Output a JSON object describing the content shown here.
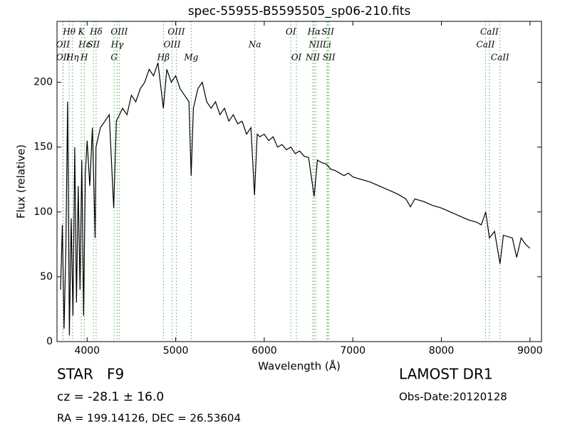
{
  "chart_data": {
    "type": "line",
    "title": "spec-55955-B5595505_sp06-210.fits",
    "x_label": "Wavelength (Å)",
    "y_label": "Flux (relative)",
    "color": "#000000",
    "x": [
      3700,
      3720,
      3740,
      3760,
      3780,
      3800,
      3820,
      3840,
      3860,
      3880,
      3900,
      3920,
      3940,
      3960,
      3980,
      4000,
      4030,
      4060,
      4090,
      4100,
      4150,
      4200,
      4250,
      4300,
      4330,
      4400,
      4450,
      4500,
      4550,
      4600,
      4650,
      4700,
      4750,
      4800,
      4861,
      4900,
      4950,
      5000,
      5050,
      5100,
      5150,
      5175,
      5200,
      5250,
      5300,
      5350,
      5400,
      5450,
      5500,
      5550,
      5600,
      5650,
      5700,
      5750,
      5800,
      5850,
      5890,
      5920,
      5950,
      6000,
      6050,
      6100,
      6150,
      6200,
      6250,
      6300,
      6350,
      6400,
      6450,
      6500,
      6563,
      6600,
      6650,
      6700,
      6750,
      6800,
      6850,
      6900,
      6950,
      7000,
      7100,
      7200,
      7300,
      7400,
      7500,
      7600,
      7650,
      7700,
      7800,
      7900,
      8000,
      8100,
      8200,
      8300,
      8400,
      8450,
      8500,
      8542,
      8600,
      8662,
      8700,
      8800,
      8850,
      8900,
      8950,
      9000
    ],
    "values": [
      40,
      90,
      10,
      70,
      185,
      5,
      95,
      20,
      150,
      30,
      120,
      40,
      140,
      20,
      130,
      155,
      120,
      165,
      80,
      150,
      165,
      170,
      175,
      103,
      170,
      180,
      175,
      190,
      185,
      195,
      200,
      210,
      205,
      215,
      180,
      210,
      200,
      205,
      195,
      190,
      185,
      128,
      180,
      195,
      200,
      185,
      180,
      185,
      175,
      180,
      170,
      175,
      168,
      170,
      160,
      165,
      113,
      160,
      158,
      160,
      155,
      158,
      150,
      152,
      148,
      150,
      145,
      147,
      143,
      142,
      112,
      140,
      138,
      137,
      133,
      132,
      130,
      128,
      130,
      127,
      125,
      123,
      120,
      117,
      114,
      110,
      104,
      110,
      108,
      105,
      103,
      100,
      97,
      94,
      92,
      90,
      100,
      80,
      85,
      60,
      82,
      80,
      65,
      80,
      75,
      72
    ],
    "xlim": [
      3660,
      9130
    ],
    "ylim": [
      0,
      247
    ],
    "xticks": [
      4000,
      5000,
      6000,
      7000,
      8000,
      9000
    ],
    "yticks": [
      0,
      50,
      100,
      150,
      200
    ],
    "line_color": "#55aa55",
    "line_labels": [
      [
        {
          "label": "Hθ",
          "x": 3798
        },
        {
          "label": "K",
          "x": 3934
        },
        {
          "label": "Hδ",
          "x": 4102
        },
        {
          "label": "OIII",
          "x": 4363
        },
        {
          "label": "OIII",
          "x": 5007
        },
        {
          "label": "OI",
          "x": 6300
        },
        {
          "label": "Hα",
          "x": 6563
        },
        {
          "label": "SII",
          "x": 6717
        },
        {
          "label": "CaII",
          "x": 8542
        }
      ],
      [
        {
          "label": "OII",
          "x": 3727
        },
        {
          "label": "Hε",
          "x": 3970
        },
        {
          "label": "SII",
          "x": 4072
        },
        {
          "label": "Hγ",
          "x": 4340
        },
        {
          "label": "OIII",
          "x": 4959
        },
        {
          "label": "Na",
          "x": 5893
        },
        {
          "label": "NII",
          "x": 6583
        },
        {
          "label": "Li",
          "x": 6708
        },
        {
          "label": "CaII",
          "x": 8498
        }
      ],
      [
        {
          "label": "OII",
          "x": 3729
        },
        {
          "label": "Hη",
          "x": 3835
        },
        {
          "label": "H",
          "x": 3968
        },
        {
          "label": "G",
          "x": 4305
        },
        {
          "label": "Hβ",
          "x": 4861
        },
        {
          "label": "Mg",
          "x": 5175
        },
        {
          "label": "OI",
          "x": 6363
        },
        {
          "label": "NII",
          "x": 6548
        },
        {
          "label": "SII",
          "x": 6731
        },
        {
          "label": "CaII",
          "x": 8662
        }
      ]
    ]
  },
  "footer": {
    "class": "STAR   F9",
    "survey": "LAMOST DR1",
    "cz": "cz = -28.1 ± 16.0",
    "date": "Obs-Date:20120128",
    "coords": "RA = 199.14126, DEC = 26.53604"
  }
}
